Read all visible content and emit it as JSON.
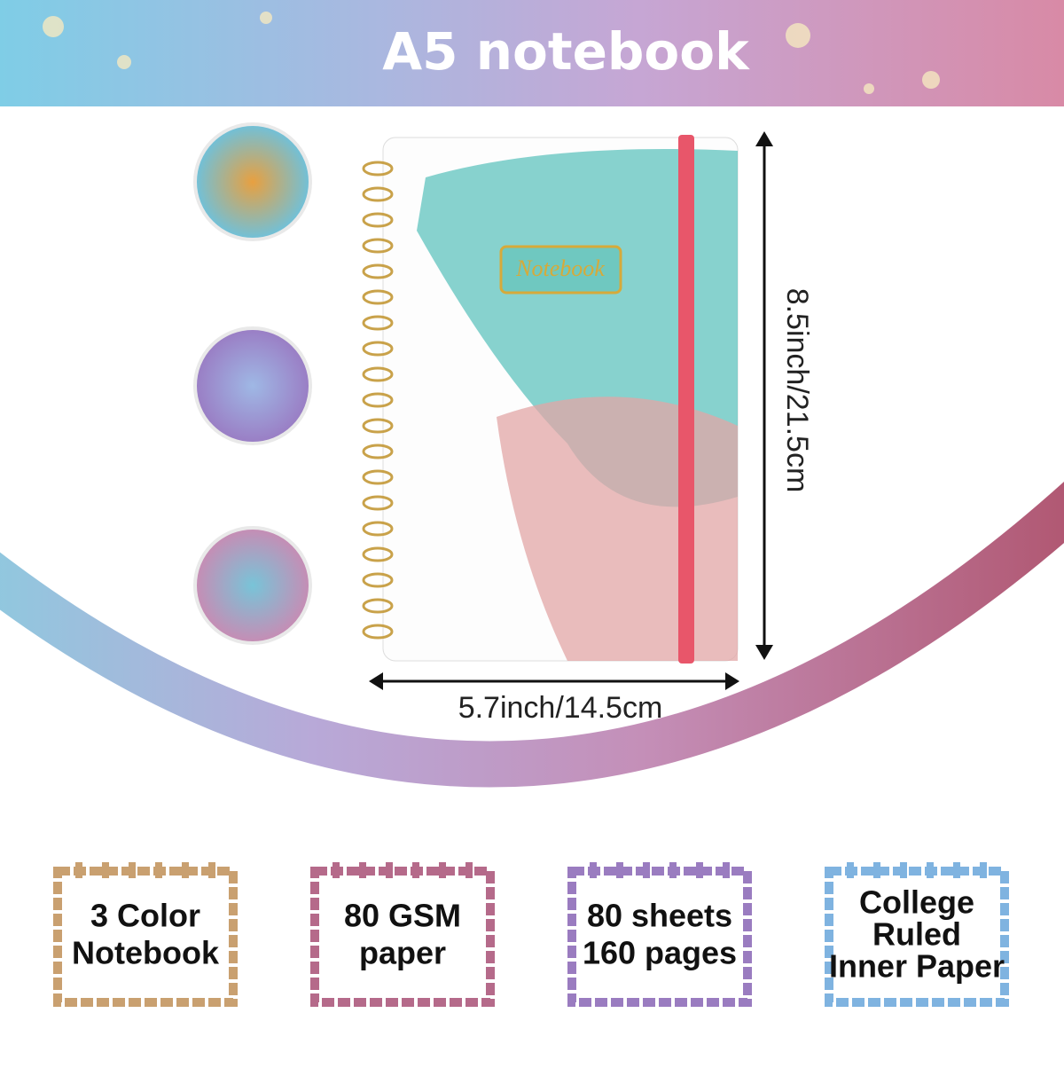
{
  "header": {
    "title": "A5 notebook"
  },
  "notebook": {
    "cover_label": "Notebook",
    "height": "8.5inch/21.5cm",
    "width": "5.7inch/14.5cm"
  },
  "features": [
    {
      "lines": [
        "3 Color",
        "Notebook"
      ]
    },
    {
      "lines": [
        "80 GSM",
        "paper"
      ]
    },
    {
      "lines": [
        "80 sheets",
        "160 pages"
      ]
    },
    {
      "lines": [
        "College",
        "Ruled",
        "Inner Paper"
      ]
    }
  ]
}
